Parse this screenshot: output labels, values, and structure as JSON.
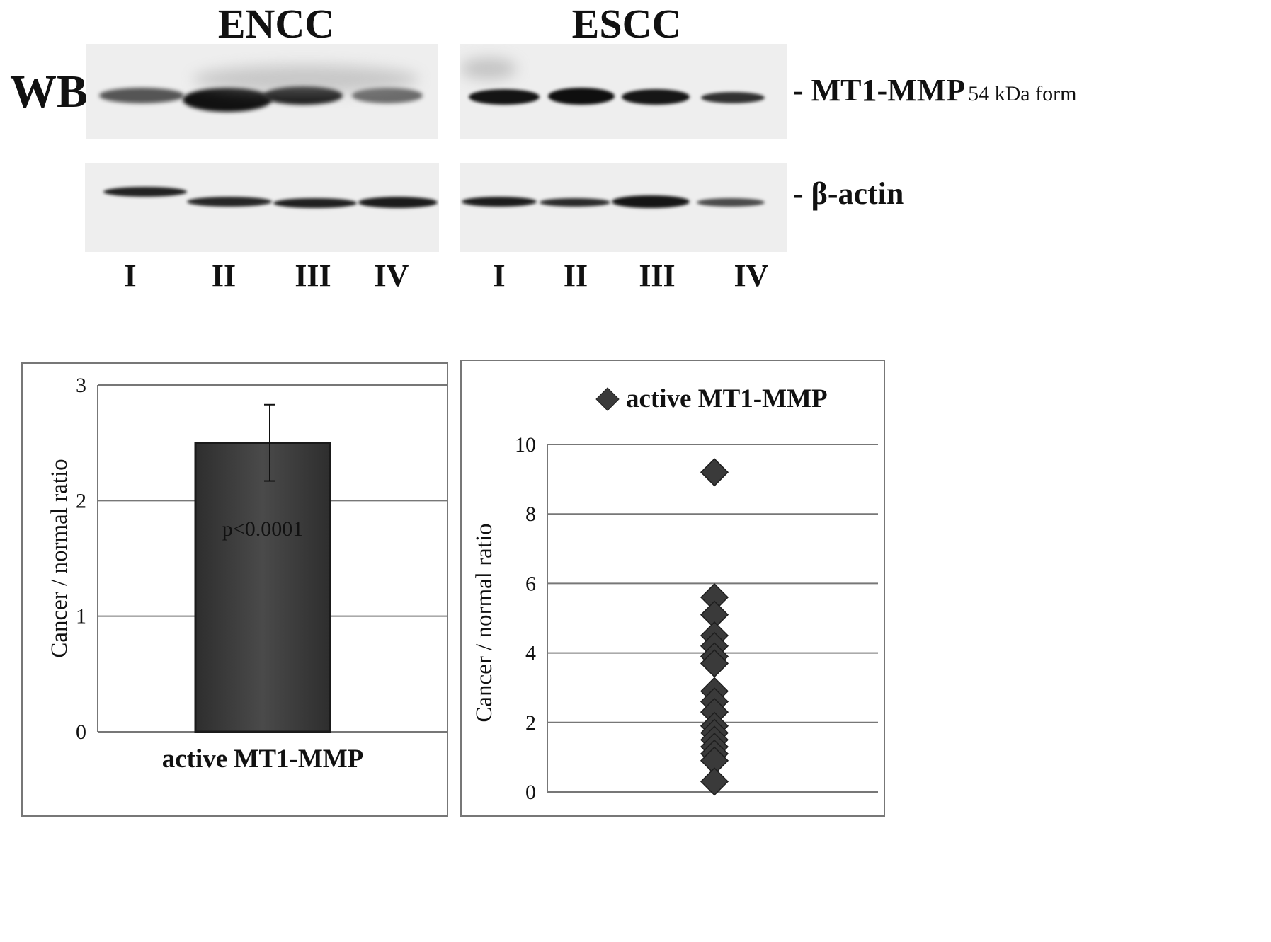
{
  "western_blot": {
    "method_label": "WB",
    "groups": [
      {
        "name": "ENCC",
        "lanes": [
          "I",
          "II",
          "III",
          "IV"
        ]
      },
      {
        "name": "ESCC",
        "lanes": [
          "I",
          "II",
          "III",
          "IV"
        ]
      }
    ],
    "rows": [
      {
        "label": "- MT1-MMP",
        "sublabel": "54 kDa form"
      },
      {
        "label": "- β-actin",
        "sublabel": ""
      }
    ]
  },
  "chart_data": [
    {
      "type": "bar",
      "categories": [
        "active MT1-MMP"
      ],
      "values": [
        2.5
      ],
      "error": [
        0.33
      ],
      "ylabel": "Cancer / normal ratio",
      "xlabel": "",
      "ylim": [
        0,
        3
      ],
      "yticks": [
        0,
        1,
        2,
        3
      ],
      "annotation": "p<0.0001",
      "bar_color": "#404040",
      "grid": true
    },
    {
      "type": "scatter",
      "series": [
        {
          "name": "active MT1-MMP",
          "x": [
            1,
            1,
            1,
            1,
            1,
            1,
            1,
            1,
            1,
            1,
            1,
            1,
            1,
            1,
            1,
            1,
            1
          ],
          "y": [
            9.2,
            5.6,
            5.1,
            4.5,
            4.2,
            3.9,
            3.7,
            2.9,
            2.6,
            2.3,
            1.9,
            1.7,
            1.5,
            1.3,
            1.1,
            0.9,
            0.3
          ]
        }
      ],
      "ylabel": "Cancer / normal ratio",
      "xlabel": "",
      "ylim": [
        0,
        10
      ],
      "yticks": [
        0,
        2,
        4,
        6,
        8,
        10
      ],
      "legend_position": "top",
      "marker_color": "#3a3a3a",
      "grid": true
    }
  ]
}
